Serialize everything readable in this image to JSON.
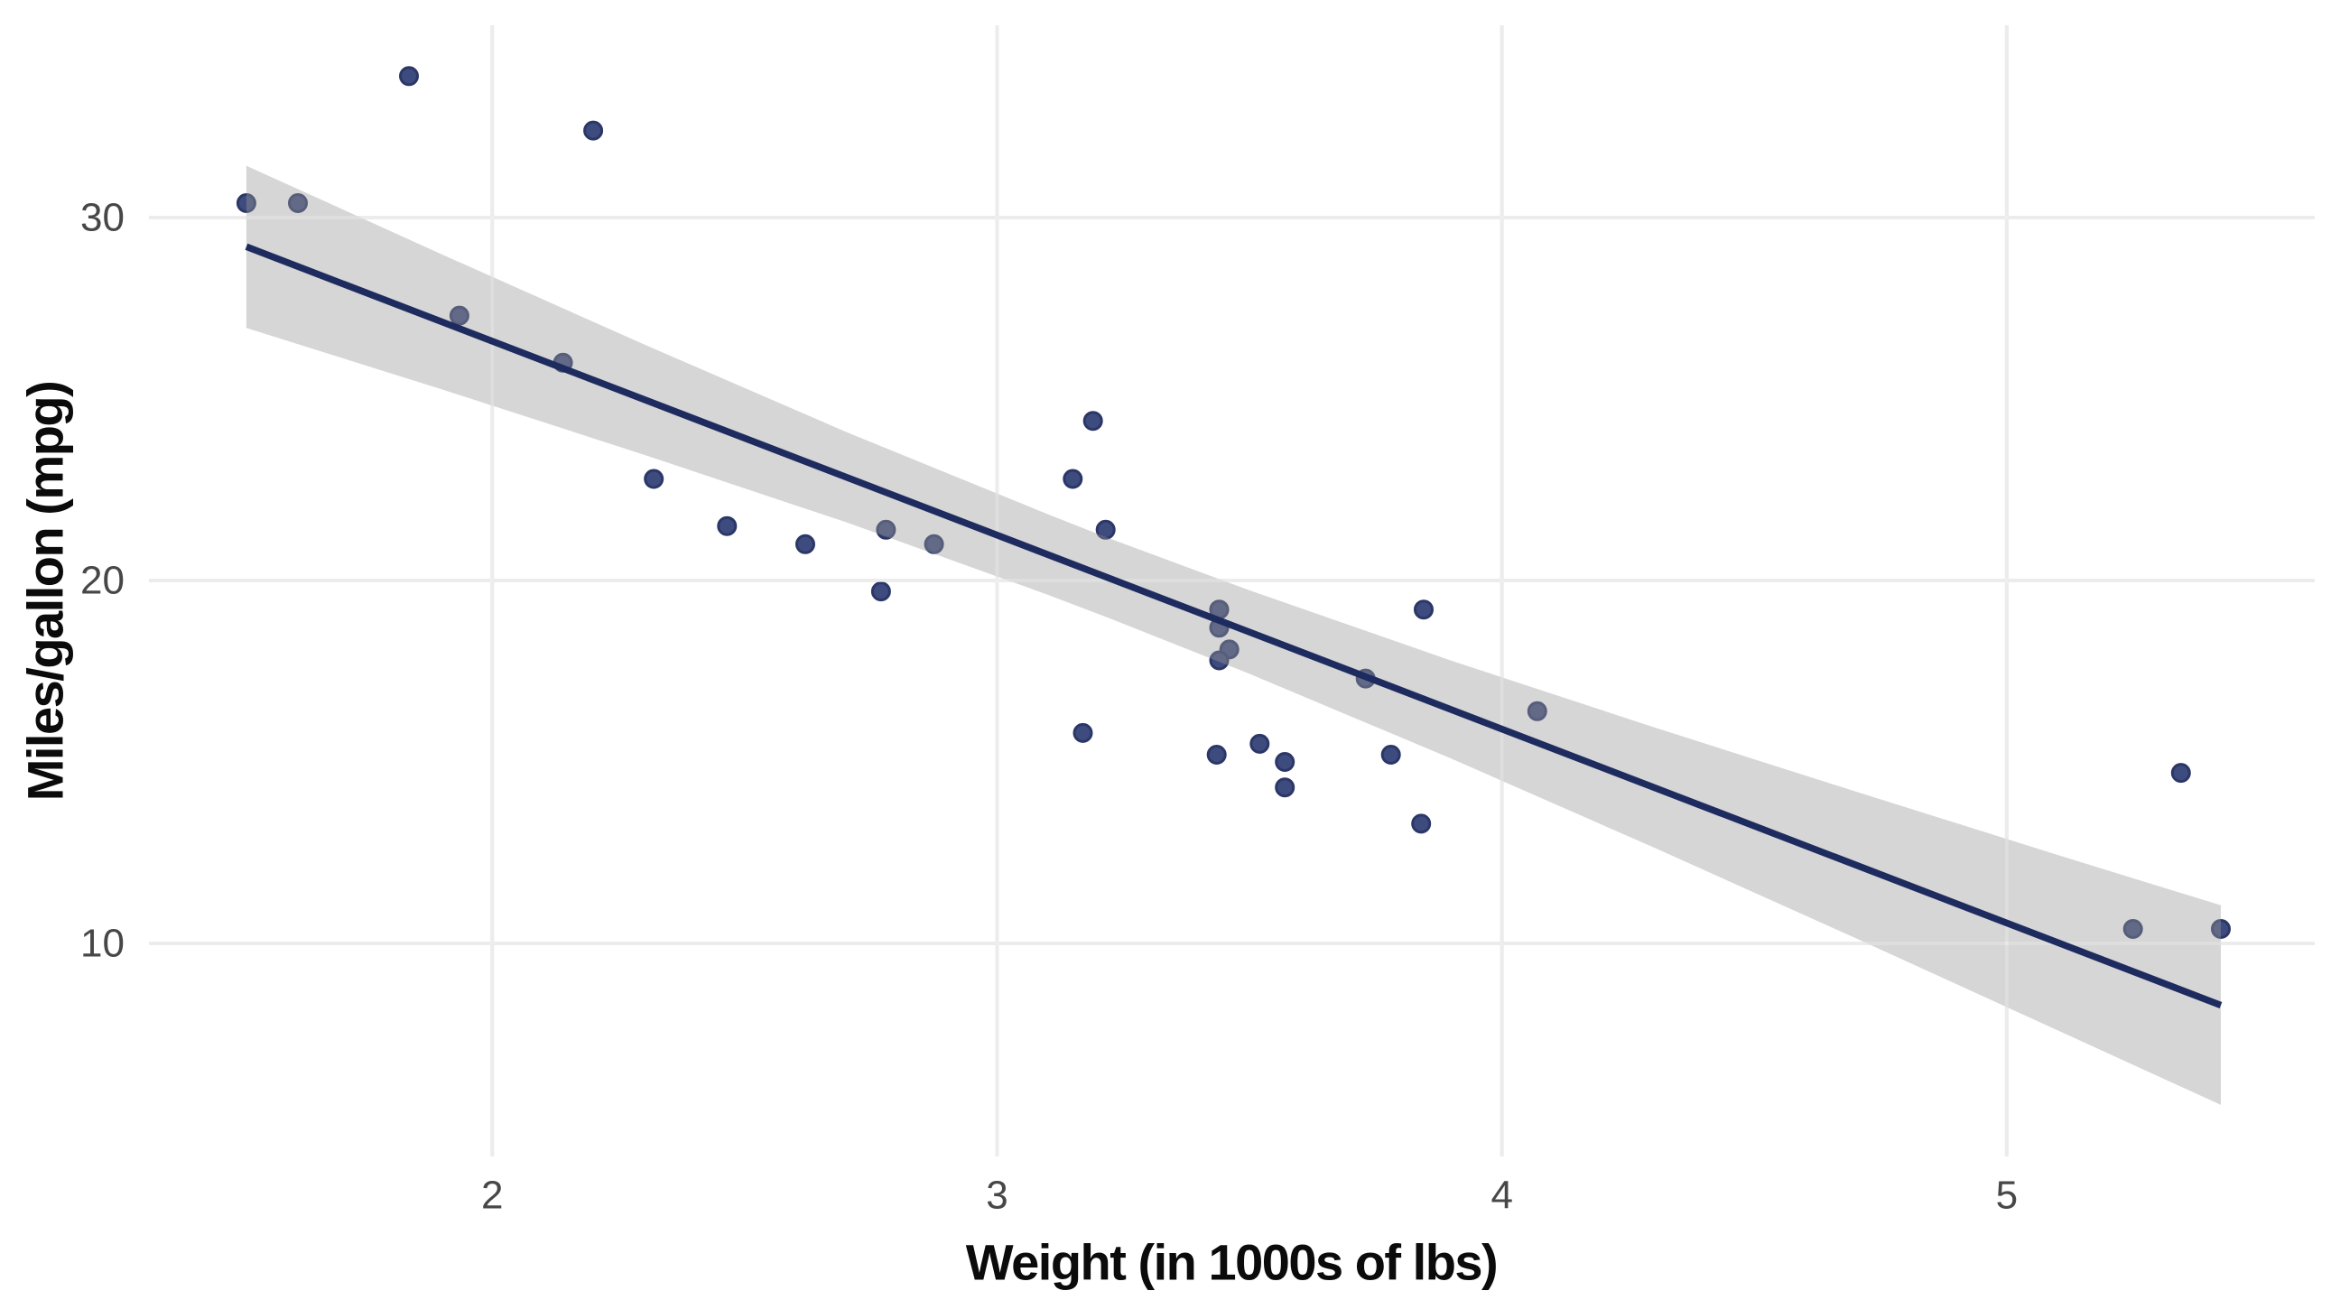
{
  "chart_data": {
    "type": "scatter",
    "title": "",
    "xlabel": "Weight (in 1000s of lbs)",
    "ylabel": "Miles/gallon (mpg)",
    "x_ticks": [
      2,
      3,
      4,
      5
    ],
    "y_ticks": [
      10,
      20,
      30
    ],
    "xlim": [
      1.32,
      5.61
    ],
    "ylim": [
      4.13,
      35.3
    ],
    "grid": "major-only",
    "legend": "none",
    "points_wt_mpg": [
      [
        2.62,
        21.0
      ],
      [
        2.875,
        21.0
      ],
      [
        2.32,
        22.8
      ],
      [
        3.215,
        21.4
      ],
      [
        3.44,
        18.7
      ],
      [
        3.46,
        18.1
      ],
      [
        3.57,
        14.3
      ],
      [
        3.19,
        24.4
      ],
      [
        3.15,
        22.8
      ],
      [
        3.44,
        19.2
      ],
      [
        3.44,
        17.8
      ],
      [
        4.07,
        16.4
      ],
      [
        3.73,
        17.3
      ],
      [
        3.78,
        15.2
      ],
      [
        5.25,
        10.4
      ],
      [
        5.424,
        10.4
      ],
      [
        5.345,
        14.7
      ],
      [
        2.2,
        32.4
      ],
      [
        1.615,
        30.4
      ],
      [
        1.835,
        33.9
      ],
      [
        2.465,
        21.5
      ],
      [
        3.52,
        15.5
      ],
      [
        3.435,
        15.2
      ],
      [
        3.84,
        13.3
      ],
      [
        3.845,
        19.2
      ],
      [
        1.935,
        27.3
      ],
      [
        2.14,
        26.0
      ],
      [
        1.513,
        30.4
      ],
      [
        3.17,
        15.8
      ],
      [
        2.77,
        19.7
      ],
      [
        3.57,
        15.0
      ],
      [
        2.78,
        21.4
      ]
    ],
    "regression_line": {
      "slope": -5.344,
      "intercept": 37.285,
      "x1": 1.513,
      "y1": 29.199,
      "x2": 5.424,
      "y2": 8.296
    },
    "confidence_band": {
      "x": [
        1.513,
        1.9,
        2.3,
        2.7,
        3.1,
        3.217,
        3.5,
        3.9,
        4.3,
        4.7,
        5.1,
        5.424
      ],
      "upper": [
        31.43,
        28.99,
        26.51,
        24.1,
        21.83,
        21.19,
        19.73,
        17.79,
        15.96,
        14.19,
        12.44,
        11.05
      ],
      "lower": [
        26.96,
        25.27,
        23.47,
        21.61,
        19.61,
        18.99,
        17.43,
        15.09,
        12.65,
        10.15,
        7.61,
        5.55
      ]
    },
    "colors": {
      "background": "#FFFFFF",
      "gridline": "#E7E7E7",
      "point_fill": "#3E4B7E",
      "point_stroke": "#2B3766",
      "line": "#1E2B5F",
      "band": "#999999",
      "band_alpha": 0.4,
      "tick_label": "#474747",
      "axis_title": "#0B0B0B"
    }
  }
}
